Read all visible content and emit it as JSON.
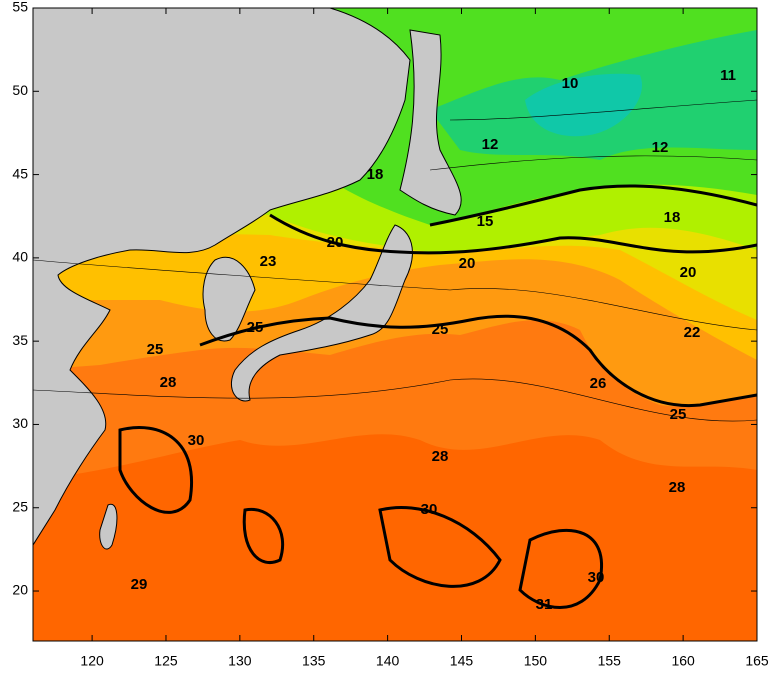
{
  "map": {
    "xlim": [
      116,
      165
    ],
    "ylim": [
      17,
      55
    ],
    "xticks": [
      120,
      125,
      130,
      135,
      140,
      145,
      150,
      155,
      160,
      165
    ],
    "yticks": [
      20,
      25,
      30,
      35,
      40,
      45,
      50,
      55
    ],
    "contour_labels": [
      10,
      11,
      12,
      12,
      18,
      15,
      18,
      20,
      20,
      20,
      23,
      25,
      25,
      25,
      22,
      26,
      25,
      28,
      30,
      28,
      28,
      30,
      29,
      31,
      30
    ]
  }
}
